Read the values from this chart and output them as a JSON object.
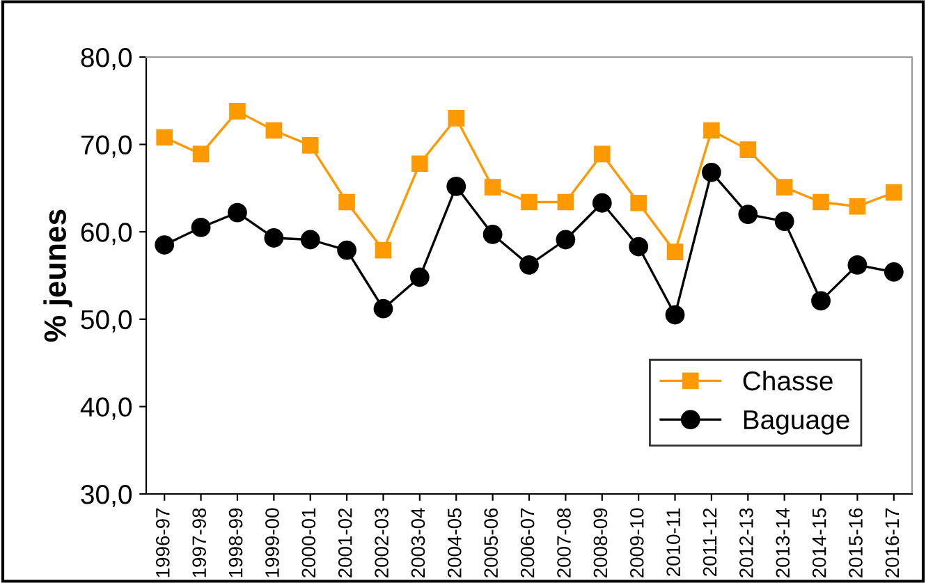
{
  "chart_data": {
    "type": "line",
    "ylabel": "% jeunes",
    "categories": [
      "1996-97",
      "1997-98",
      "1998-99",
      "1999-00",
      "2000-01",
      "2001-02",
      "2002-03",
      "2003-04",
      "2004-05",
      "2005-06",
      "2006-07",
      "2007-08",
      "2008-09",
      "2009-10",
      "2010-11",
      "2011-12",
      "2012-13",
      "2013-14",
      "2014-15",
      "2015-16",
      "2016-17"
    ],
    "series": [
      {
        "name": "Chasse",
        "color": "#ff9900",
        "marker": "square",
        "values": [
          70.8,
          68.9,
          73.8,
          71.6,
          69.9,
          63.4,
          57.9,
          67.8,
          73.0,
          65.1,
          63.4,
          63.4,
          68.9,
          63.3,
          57.7,
          71.6,
          69.4,
          65.1,
          63.4,
          62.9,
          64.5
        ]
      },
      {
        "name": "Baguage",
        "color": "#000000",
        "marker": "circle",
        "values": [
          58.5,
          60.5,
          62.2,
          59.3,
          59.1,
          57.9,
          51.2,
          54.8,
          65.2,
          59.7,
          56.2,
          59.1,
          63.3,
          58.3,
          50.5,
          66.8,
          62.0,
          61.2,
          52.1,
          56.2,
          55.4
        ]
      }
    ],
    "ylim": [
      30,
      80
    ],
    "yticks": [
      {
        "value": 30,
        "label": "30,0"
      },
      {
        "value": 40,
        "label": "40,0"
      },
      {
        "value": 50,
        "label": "50,0"
      },
      {
        "value": 60,
        "label": "60,0"
      },
      {
        "value": 70,
        "label": "70,0"
      },
      {
        "value": 80,
        "label": "80,0"
      }
    ],
    "grid": false,
    "legend": "bottom right",
    "line_style": "solid"
  }
}
